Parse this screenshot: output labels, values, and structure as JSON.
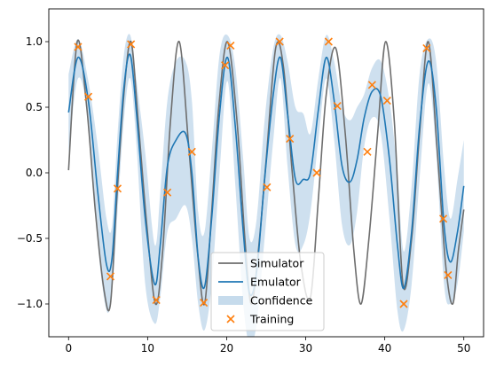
{
  "chart_data": {
    "type": "line",
    "title": "",
    "xlabel": "",
    "ylabel": "",
    "xlim": [
      -2.5,
      52.5
    ],
    "ylim": [
      -1.25,
      1.25
    ],
    "x_ticks": [
      0,
      10,
      20,
      30,
      40,
      50
    ],
    "x_tick_labels": [
      "0",
      "10",
      "20",
      "30",
      "40",
      "50"
    ],
    "y_ticks": [
      -1.0,
      -0.5,
      0.0,
      0.5,
      1.0
    ],
    "y_tick_labels": [
      "−1.0",
      "−0.5",
      "0.0",
      "0.5",
      "1.0"
    ],
    "grid": false,
    "legend_position": "lower-center",
    "colors": {
      "simulator": "#6e6e6e",
      "emulator": "#1f77b4",
      "confidence": "#c6dbec",
      "training": "#ff7f0e"
    },
    "legend": [
      {
        "key": "simulator",
        "label": "Simulator",
        "kind": "line"
      },
      {
        "key": "emulator",
        "label": "Emulator",
        "kind": "line"
      },
      {
        "key": "confidence",
        "label": "Confidence",
        "kind": "patch"
      },
      {
        "key": "training",
        "label": "Training",
        "kind": "marker"
      }
    ],
    "simulator": {
      "x": [
        0.0,
        1.1,
        2.3,
        3.4,
        4.5,
        5.3,
        6.1,
        7.0,
        7.9,
        8.8,
        9.9,
        11.0,
        11.9,
        12.9,
        14.0,
        15.2,
        16.3,
        17.2,
        18.1,
        19.0,
        20.1,
        21.3,
        22.3,
        23.1,
        24.0,
        25.0,
        26.2,
        27.2,
        28.3,
        29.4,
        30.6,
        31.6,
        32.6,
        33.8,
        35.0,
        36.1,
        37.0,
        38.0,
        39.1,
        40.1,
        41.2,
        42.3,
        43.4,
        44.4,
        45.5,
        46.6,
        47.7,
        48.6,
        49.3,
        50.0
      ],
      "y": [
        0.02,
        1.0,
        0.5,
        -0.3,
        -0.9,
        -1.0,
        -0.2,
        0.6,
        1.0,
        0.4,
        -0.4,
        -1.0,
        -0.6,
        0.4,
        1.0,
        0.2,
        -0.6,
        -1.0,
        -0.3,
        0.5,
        1.0,
        0.4,
        -0.5,
        -1.0,
        -0.6,
        0.1,
        0.95,
        0.8,
        0.0,
        -0.7,
        -0.95,
        -0.2,
        0.6,
        0.95,
        0.3,
        -0.6,
        -1.0,
        -0.5,
        0.3,
        1.0,
        0.4,
        -0.85,
        -0.5,
        0.3,
        1.0,
        0.2,
        -0.7,
        -1.0,
        -0.6,
        -0.28
      ]
    },
    "emulator": {
      "x": [
        0.0,
        1.2,
        2.5,
        3.7,
        4.8,
        5.5,
        6.2,
        7.0,
        7.8,
        8.6,
        9.7,
        10.9,
        11.6,
        12.5,
        13.6,
        14.8,
        15.6,
        16.4,
        17.2,
        18.1,
        19.1,
        20.1,
        21.1,
        22.1,
        22.9,
        23.8,
        24.8,
        25.9,
        26.8,
        27.7,
        28.7,
        29.7,
        30.6,
        31.6,
        32.6,
        33.6,
        34.6,
        35.6,
        36.5,
        37.4,
        38.4,
        39.5,
        40.6,
        41.6,
        42.4,
        43.4,
        44.4,
        45.5,
        46.5,
        47.5,
        48.3,
        49.2,
        50.0
      ],
      "y": [
        0.46,
        0.88,
        0.55,
        -0.15,
        -0.7,
        -0.65,
        0.0,
        0.65,
        0.9,
        0.45,
        -0.35,
        -0.85,
        -0.55,
        0.05,
        0.25,
        0.3,
        0.0,
        -0.65,
        -0.87,
        -0.35,
        0.45,
        0.88,
        0.35,
        -0.45,
        -0.92,
        -0.75,
        -0.05,
        0.6,
        0.88,
        0.45,
        -0.05,
        -0.05,
        0.0,
        0.48,
        0.88,
        0.55,
        0.05,
        -0.07,
        0.1,
        0.42,
        0.62,
        0.58,
        0.1,
        -0.55,
        -0.88,
        -0.45,
        0.35,
        0.85,
        0.5,
        -0.4,
        -0.68,
        -0.45,
        -0.1
      ]
    },
    "confidence": {
      "x": [
        0.0,
        1.2,
        2.5,
        3.7,
        4.8,
        5.5,
        6.2,
        7.0,
        7.8,
        8.6,
        9.7,
        10.9,
        11.6,
        12.5,
        13.6,
        14.8,
        15.6,
        16.4,
        17.2,
        18.1,
        19.1,
        20.1,
        21.1,
        22.1,
        22.9,
        23.8,
        24.8,
        25.9,
        26.8,
        27.7,
        28.7,
        29.7,
        30.6,
        31.6,
        32.6,
        33.6,
        34.6,
        35.6,
        36.5,
        37.4,
        38.4,
        39.5,
        40.6,
        41.6,
        42.4,
        43.4,
        44.4,
        45.5,
        46.5,
        47.5,
        48.3,
        49.2,
        50.0
      ],
      "upper": [
        0.75,
        1.02,
        0.7,
        0.2,
        -0.35,
        -0.4,
        0.3,
        0.9,
        1.05,
        0.7,
        0.15,
        -0.55,
        -0.15,
        0.55,
        0.85,
        0.85,
        0.55,
        -0.3,
        -0.45,
        0.15,
        0.9,
        1.05,
        0.8,
        0.1,
        -0.5,
        -0.35,
        0.4,
        0.95,
        1.05,
        0.85,
        0.5,
        0.45,
        0.3,
        0.72,
        1.05,
        0.85,
        0.5,
        0.4,
        0.5,
        0.6,
        0.8,
        0.85,
        0.55,
        0.0,
        -0.6,
        -0.1,
        0.75,
        1.02,
        0.85,
        0.05,
        -0.35,
        -0.05,
        0.25
      ],
      "lower": [
        0.15,
        0.72,
        0.4,
        -0.55,
        -1.05,
        -0.9,
        -0.3,
        0.4,
        0.72,
        0.2,
        -0.85,
        -1.15,
        -0.95,
        -0.45,
        -0.35,
        -0.25,
        -0.5,
        -1.0,
        -1.2,
        -0.85,
        0.0,
        0.7,
        -0.1,
        -1.0,
        -1.3,
        -1.15,
        -0.5,
        0.25,
        0.72,
        0.05,
        -0.55,
        -0.55,
        -0.3,
        0.25,
        0.72,
        0.25,
        -0.4,
        -0.55,
        -0.3,
        0.2,
        0.42,
        0.3,
        -0.35,
        -1.05,
        -1.2,
        -0.85,
        -0.05,
        0.68,
        0.15,
        -0.85,
        -1.0,
        -0.85,
        -0.45
      ]
    },
    "training": {
      "x": [
        1.2,
        2.5,
        5.3,
        6.2,
        7.9,
        11.1,
        12.5,
        15.6,
        17.1,
        19.8,
        20.5,
        25.1,
        26.7,
        28.0,
        31.4,
        32.9,
        34.0,
        37.8,
        38.4,
        40.3,
        42.4,
        45.3,
        47.4,
        48.0
      ],
      "y": [
        0.96,
        0.58,
        -0.79,
        -0.12,
        0.98,
        -0.97,
        -0.15,
        0.16,
        -0.99,
        0.82,
        0.97,
        -0.11,
        1.0,
        0.26,
        0.0,
        1.0,
        0.51,
        0.16,
        0.67,
        0.55,
        -1.0,
        0.95,
        -0.35,
        -0.78
      ]
    }
  }
}
